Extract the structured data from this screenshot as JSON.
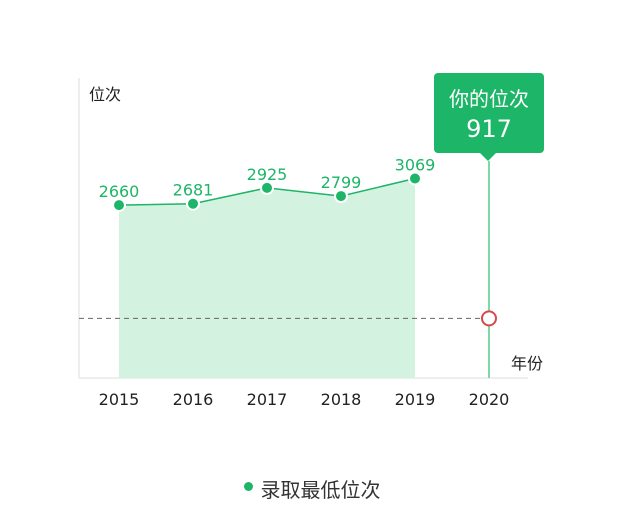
{
  "chart_data": {
    "type": "area",
    "ylabel": "位次",
    "xlabel": "年份",
    "categories": [
      "2015",
      "2016",
      "2017",
      "2018",
      "2019",
      "2020"
    ],
    "series": [
      {
        "name": "录取最低位次",
        "x": [
          "2015",
          "2016",
          "2017",
          "2018",
          "2019"
        ],
        "values": [
          2660,
          2681,
          2925,
          2799,
          3069
        ]
      }
    ],
    "marker": {
      "label": "你的位次",
      "x": "2020",
      "value": 917
    },
    "colors": {
      "series": "#1db567",
      "area": "#d4f2e0",
      "marker_line": "#7fd9a6",
      "marker_point": "#d84a4a",
      "reference_line": "#666666"
    },
    "legend": "bottom-center",
    "grid": false
  }
}
